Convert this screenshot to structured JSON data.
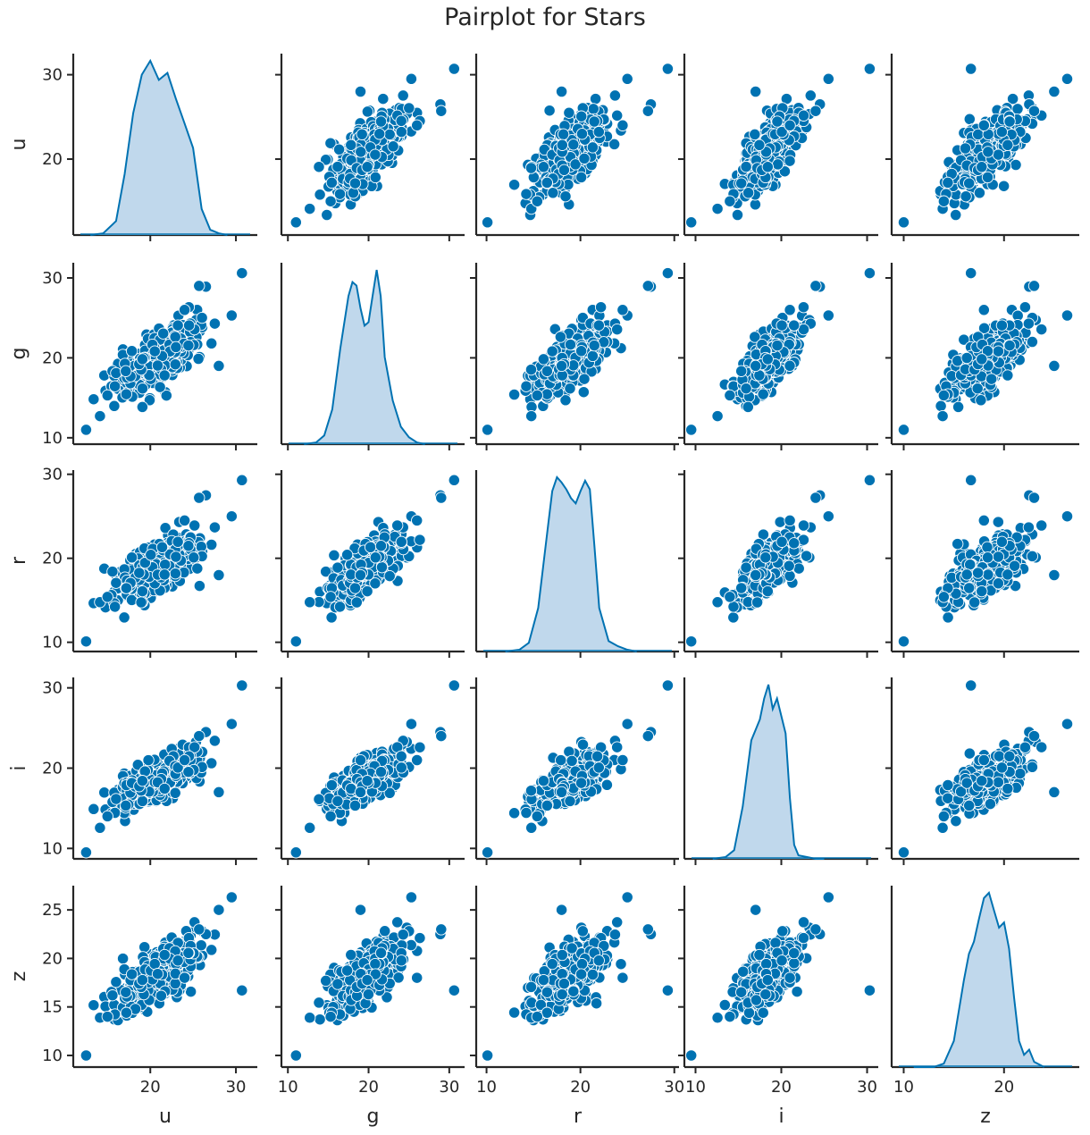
{
  "chart_data": {
    "type": "pairplot",
    "title": "Pairplot for Stars",
    "variables": [
      "u",
      "g",
      "r",
      "i",
      "z"
    ],
    "color": "#0072b2",
    "kde_fill": "#c0d8ec",
    "grid": false,
    "x_ticks": {
      "u": [
        20,
        30
      ],
      "g": [
        10,
        20,
        30
      ],
      "r": [
        10,
        20,
        30
      ],
      "i": [
        10,
        20,
        30
      ],
      "z": [
        10,
        20
      ]
    },
    "y_ticks": {
      "u": [
        20,
        30
      ],
      "g": [
        10,
        20,
        30
      ],
      "r": [
        10,
        20,
        30
      ],
      "i": [
        10,
        20,
        30
      ],
      "z": [
        10,
        15,
        20,
        25
      ]
    },
    "ranges": {
      "u": [
        11,
        32.5
      ],
      "g": [
        9.2,
        31.9
      ],
      "r": [
        8.9,
        30.5
      ],
      "i": [
        8.7,
        31.3
      ],
      "z": [
        8.8,
        27.5
      ]
    },
    "stats": {
      "u": {
        "mean": 21.0,
        "sd": 2.3
      },
      "g": {
        "mean": 19.8,
        "sd": 2.1
      },
      "r": {
        "mean": 19.0,
        "sd": 1.9
      },
      "i": {
        "mean": 18.6,
        "sd": 1.8
      },
      "z": {
        "mean": 18.3,
        "sd": 1.8
      }
    },
    "kde": {
      "u": {
        "x": [
          13.0,
          14.5,
          16.0,
          17.0,
          18.0,
          19.0,
          20.0,
          21.0,
          22.0,
          23.0,
          24.0,
          25.0,
          26.0,
          27.0,
          28.0,
          29.0
        ],
        "y": [
          0.0,
          0.01,
          0.08,
          0.35,
          0.7,
          0.92,
          1.0,
          0.89,
          0.93,
          0.78,
          0.64,
          0.5,
          0.15,
          0.03,
          0.01,
          0.0
        ]
      },
      "g": {
        "x": [
          12.0,
          13.5,
          14.5,
          15.5,
          16.5,
          17.5,
          18.0,
          18.5,
          19.0,
          19.5,
          20.0,
          20.5,
          21.0,
          21.5,
          22.0,
          23.0,
          24.0,
          25.0,
          26.0,
          27.0
        ],
        "y": [
          0.0,
          0.01,
          0.05,
          0.2,
          0.55,
          0.85,
          0.93,
          0.91,
          0.78,
          0.68,
          0.7,
          0.85,
          1.0,
          0.85,
          0.5,
          0.25,
          0.1,
          0.04,
          0.01,
          0.0
        ]
      },
      "r": {
        "x": [
          12.0,
          13.5,
          14.5,
          15.5,
          16.5,
          17.0,
          17.5,
          18.0,
          18.5,
          19.0,
          19.5,
          20.0,
          20.5,
          21.0,
          21.5,
          22.0,
          23.0,
          24.0,
          25.0,
          26.0
        ],
        "y": [
          0.0,
          0.01,
          0.05,
          0.25,
          0.7,
          0.92,
          1.0,
          0.97,
          0.93,
          0.88,
          0.85,
          0.92,
          0.98,
          0.93,
          0.6,
          0.25,
          0.06,
          0.03,
          0.01,
          0.0
        ]
      },
      "i": {
        "x": [
          12.0,
          13.5,
          14.5,
          15.5,
          16.5,
          17.0,
          17.5,
          18.0,
          18.5,
          19.0,
          19.5,
          20.0,
          20.5,
          21.0,
          21.5,
          22.0,
          23.0,
          24.0,
          25.0
        ],
        "y": [
          0.0,
          0.01,
          0.05,
          0.3,
          0.68,
          0.74,
          0.8,
          0.92,
          1.0,
          0.86,
          0.92,
          0.82,
          0.72,
          0.35,
          0.08,
          0.02,
          0.01,
          0.0,
          0.0
        ]
      },
      "z": {
        "x": [
          11.0,
          13.0,
          14.0,
          15.0,
          16.0,
          16.5,
          17.0,
          17.5,
          18.0,
          18.5,
          19.0,
          19.5,
          20.0,
          20.5,
          21.0,
          21.5,
          22.0,
          22.5,
          23.0,
          24.0
        ],
        "y": [
          0.0,
          0.0,
          0.02,
          0.15,
          0.5,
          0.65,
          0.72,
          0.85,
          0.97,
          1.0,
          0.9,
          0.8,
          0.83,
          0.68,
          0.4,
          0.15,
          0.07,
          0.1,
          0.03,
          0.0
        ]
      }
    },
    "outliers": {
      "u": [
        30.7,
        26.5,
        29.5,
        25.7,
        15.0,
        12.5,
        24.0,
        28.0
      ],
      "g": [
        30.6,
        28.9,
        25.3,
        29.0,
        15.3,
        11.0,
        26.0,
        19.0
      ],
      "r": [
        29.3,
        27.5,
        25.0,
        27.2,
        15.4,
        10.1,
        24.5,
        18.0
      ],
      "i": [
        30.3,
        24.5,
        25.5,
        24.0,
        14.0,
        9.5,
        21.0,
        17.0
      ],
      "z": [
        16.7,
        22.5,
        26.3,
        23.0,
        14.0,
        10.0,
        18.0,
        25.0
      ]
    },
    "xlabels": [
      "u",
      "g",
      "r",
      "i",
      "z"
    ],
    "ylabels": [
      "u",
      "g",
      "r",
      "i",
      "z"
    ]
  }
}
